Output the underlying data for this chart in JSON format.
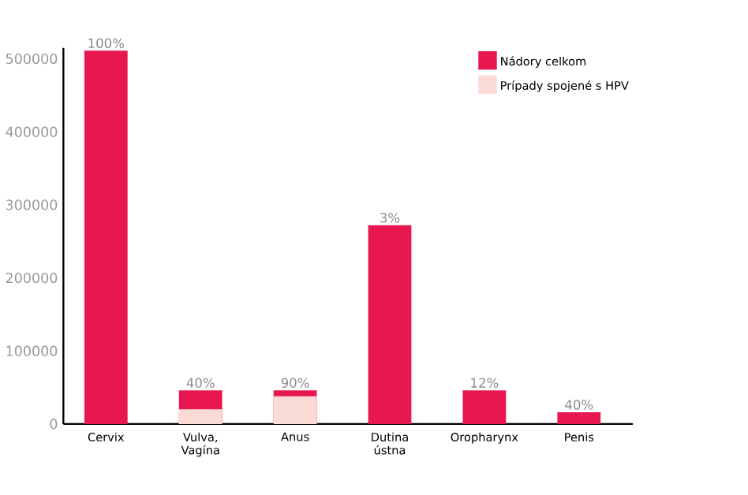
{
  "chart_data": {
    "type": "bar",
    "categories": [
      "Cervix",
      "Vulva, Vagína",
      "Anus",
      "Dutina ústna",
      "Oropharynx",
      "Penis"
    ],
    "series": [
      {
        "name": "Nádory celkom",
        "color": "#e8174f",
        "values": [
          511000,
          46000,
          46000,
          272000,
          46000,
          16000
        ]
      },
      {
        "name": "Prípady spojené s HPV",
        "color": "#fadbd5",
        "values": [
          null,
          20000,
          38000,
          null,
          null,
          null
        ]
      }
    ],
    "ylim": [
      0,
      515000
    ],
    "yticks": [
      0,
      100000,
      200000,
      300000,
      400000,
      500000
    ],
    "legend": "top right",
    "annotations": [
      {
        "text": "100%",
        "x": "Cervix",
        "y": 511000
      },
      {
        "text": "40%",
        "x": "Vulva, Vagína",
        "y": 46000
      },
      {
        "text": "90%",
        "x": "Anus",
        "y": 46000
      },
      {
        "text": "3%",
        "x": "Dutina ústna",
        "y": 272000
      },
      {
        "text": "12%",
        "x": "Oropharynx",
        "y": 46000
      },
      {
        "text": "40%",
        "x": "Penis",
        "y": 16000
      }
    ]
  }
}
